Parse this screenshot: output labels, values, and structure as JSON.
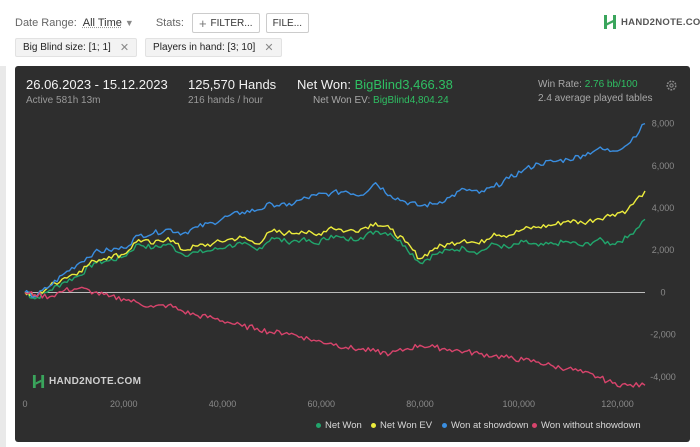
{
  "toolbar": {
    "date_range_label": "Date Range:",
    "date_range_value": "All Time",
    "stats_label": "Stats:",
    "filter_button": "FILTER...",
    "file_button": "FILE...",
    "logo_text": "HAND2NOTE.COM"
  },
  "filters": [
    {
      "label": "Big Blind size: [1; 1]"
    },
    {
      "label": "Players in hand: [3; 10]"
    }
  ],
  "header": {
    "date_span": "26.06.2023 - 15.12.2023",
    "active_time": "Active 581h 13m",
    "hands": "125,570 Hands",
    "hands_per_hour": "216 hands / hour",
    "net_won_label": "Net Won: ",
    "net_won_value": "BigBlind3,466.38",
    "net_won_ev_label": "Net Won  EV: ",
    "net_won_ev_value": "BigBlind4,804.24",
    "win_rate_label": "Win Rate: ",
    "win_rate_value": "2.76 bb/100",
    "avg_tables": "2.4 average played tables"
  },
  "watermark": "HAND2NOTE.COM",
  "colors": {
    "net_won": "#21a56c",
    "net_won_ev": "#ecec3c",
    "showdown": "#3a8ee0",
    "non_showdown": "#d8446c",
    "positive": "#2fbf63"
  },
  "chart_data": {
    "type": "line",
    "x_ticks": [
      "0",
      "20,000",
      "40,000",
      "60,000",
      "80,000",
      "100,000",
      "120,000"
    ],
    "y_ticks": [
      "8,000",
      "6,000",
      "4,000",
      "2,000",
      "0",
      "-2,000",
      "-4,000"
    ],
    "xlim": [
      0,
      125570
    ],
    "ylim": [
      -5000,
      8500
    ],
    "x": [
      0,
      2000,
      5000,
      8000,
      11000,
      14000,
      17000,
      20000,
      23000,
      26000,
      29000,
      32000,
      35000,
      38000,
      41000,
      44000,
      47000,
      50000,
      53000,
      56000,
      59000,
      62000,
      65000,
      68000,
      71000,
      74000,
      77000,
      80000,
      83000,
      86000,
      89000,
      92000,
      95000,
      98000,
      101000,
      104000,
      107000,
      110000,
      113000,
      116000,
      119000,
      122000,
      125570
    ],
    "series": [
      {
        "name": "Net Won",
        "color": "#21a56c",
        "values": [
          0,
          -300,
          100,
          500,
          800,
          1400,
          1500,
          1700,
          2300,
          2100,
          2300,
          1800,
          1900,
          2000,
          2200,
          2300,
          2000,
          2600,
          2400,
          2500,
          2300,
          2700,
          2500,
          2600,
          2900,
          2800,
          2200,
          1400,
          1800,
          2000,
          2100,
          1900,
          2300,
          2100,
          2400,
          2200,
          2300,
          2400,
          2200,
          2500,
          2300,
          2600,
          3466
        ]
      },
      {
        "name": "Net Won  EV",
        "color": "#ecec3c",
        "values": [
          0,
          -200,
          300,
          700,
          1000,
          1500,
          1700,
          1800,
          2500,
          2300,
          2600,
          2000,
          2200,
          2300,
          2500,
          2600,
          2300,
          2900,
          2800,
          2900,
          2700,
          3100,
          2900,
          3000,
          3300,
          3000,
          2400,
          1600,
          2100,
          2300,
          2500,
          2300,
          2800,
          2700,
          3000,
          3100,
          3200,
          3400,
          3300,
          3500,
          3700,
          3900,
          4804
        ]
      },
      {
        "name": "Won at showdown",
        "color": "#3a8ee0",
        "values": [
          0,
          -200,
          300,
          900,
          1400,
          1900,
          2000,
          2100,
          2700,
          2800,
          3000,
          2800,
          3100,
          3300,
          3600,
          3800,
          3900,
          4200,
          4100,
          4400,
          4600,
          4700,
          4800,
          4600,
          5200,
          4600,
          4300,
          4100,
          4200,
          4500,
          4900,
          4700,
          5000,
          5400,
          5800,
          6100,
          6200,
          6300,
          6500,
          6800,
          6700,
          7000,
          8000
        ]
      },
      {
        "name": "Won without showdown",
        "color": "#d8446c",
        "values": [
          0,
          -100,
          -200,
          100,
          200,
          0,
          -200,
          -300,
          -500,
          -700,
          -600,
          -900,
          -1100,
          -1200,
          -1400,
          -1600,
          -1700,
          -1900,
          -1900,
          -2100,
          -2300,
          -2400,
          -2600,
          -2700,
          -2800,
          -2900,
          -2700,
          -2500,
          -2600,
          -2700,
          -2800,
          -2900,
          -3000,
          -3100,
          -3200,
          -3300,
          -3500,
          -3600,
          -3800,
          -4000,
          -4300,
          -4400,
          -4400
        ]
      }
    ]
  }
}
